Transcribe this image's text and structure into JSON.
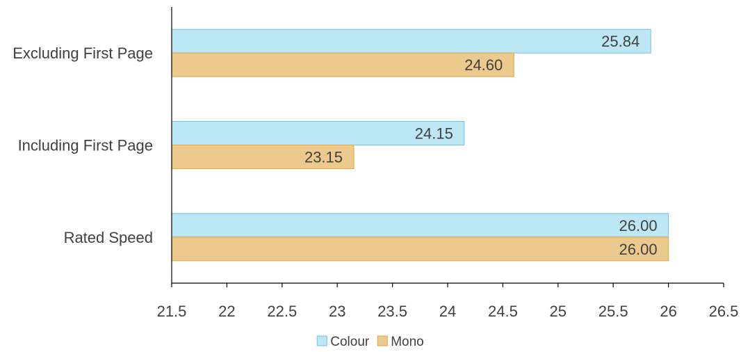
{
  "chart_data": {
    "type": "bar",
    "orientation": "horizontal",
    "title": "",
    "xlabel": "",
    "ylabel": "",
    "categories": [
      "Excluding First Page",
      "Including First Page",
      "Rated Speed"
    ],
    "series": [
      {
        "name": "Colour",
        "values": [
          25.84,
          24.15,
          26.0
        ],
        "labels": [
          "25.84",
          "24.15",
          "26.00"
        ],
        "color": "#bde7f4",
        "border": "#6cc3e6"
      },
      {
        "name": "Mono",
        "values": [
          24.6,
          23.15,
          26.0
        ],
        "labels": [
          "24.60",
          "23.15",
          "26.00"
        ],
        "color": "#ecc98d",
        "border": "#e2a63d"
      }
    ],
    "xlim": [
      21.5,
      26.5
    ],
    "ticks": [
      "21.5",
      "22",
      "22.5",
      "23",
      "23.5",
      "24",
      "24.5",
      "25",
      "25.5",
      "26",
      "26.5"
    ],
    "grid": false,
    "legend_position": "bottom"
  }
}
